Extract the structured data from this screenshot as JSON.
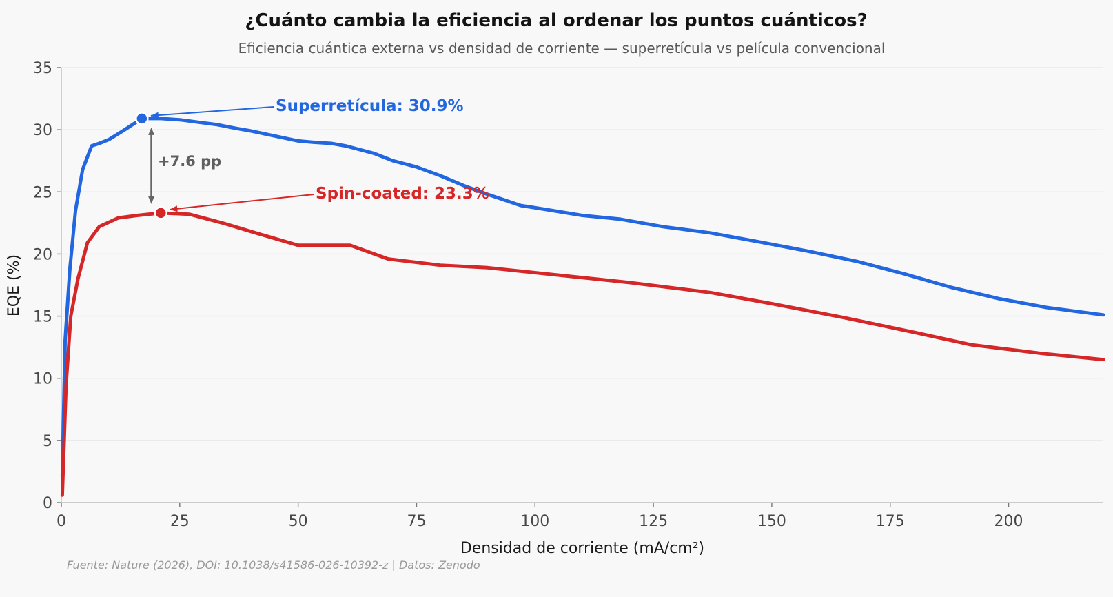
{
  "title": "¿Cuánto cambia la eficiencia al ordenar los puntos cuánticos?",
  "subtitle": "Eficiencia cuántica externa vs densidad de corriente — superretícula vs película convencional",
  "footer": "Fuente: Nature (2026), DOI: 10.1038/s41586-026-10392-z | Datos: Zenodo",
  "colors": {
    "background": "#f8f8f9",
    "grid": "#e9e9ec",
    "spine": "#bdbdbd",
    "tick_mark": "#777777",
    "tick_label": "#474747",
    "blue": "#2267e0",
    "red": "#d62728",
    "arrow_gray": "#666666"
  },
  "chart_data": {
    "type": "line",
    "title": "¿Cuánto cambia la eficiencia al ordenar los puntos cuánticos?",
    "subtitle": "Eficiencia cuántica externa vs densidad de corriente — superretícula vs película convencional",
    "xlabel": "Densidad de corriente (mA/cm²)",
    "ylabel": "EQE (%)",
    "xlim": [
      0,
      220
    ],
    "ylim": [
      0,
      35
    ],
    "x_ticks": [
      0,
      25,
      50,
      75,
      100,
      125,
      150,
      175,
      200
    ],
    "y_ticks": [
      0,
      5,
      10,
      15,
      20,
      25,
      30,
      35
    ],
    "grid": "horizontal",
    "legend_position": "none",
    "series": [
      {
        "name": "Superretícula",
        "color": "#2267e0",
        "peak": {
          "x": 17,
          "y": 30.9
        },
        "annotation": {
          "text": "Superretícula: 30.9%"
        },
        "points": [
          [
            0.2,
            2.1
          ],
          [
            0.8,
            13.0
          ],
          [
            1.8,
            18.8
          ],
          [
            3.0,
            23.5
          ],
          [
            4.5,
            26.8
          ],
          [
            6.4,
            28.7
          ],
          [
            8,
            28.9
          ],
          [
            10,
            29.2
          ],
          [
            13,
            29.9
          ],
          [
            17,
            30.9
          ],
          [
            21,
            30.9
          ],
          [
            25,
            30.8
          ],
          [
            29,
            30.6
          ],
          [
            33,
            30.4
          ],
          [
            37,
            30.1
          ],
          [
            40,
            29.9
          ],
          [
            45,
            29.5
          ],
          [
            50,
            29.1
          ],
          [
            53,
            29.0
          ],
          [
            57,
            28.9
          ],
          [
            60,
            28.7
          ],
          [
            63,
            28.4
          ],
          [
            66,
            28.1
          ],
          [
            70,
            27.5
          ],
          [
            75,
            27.0
          ],
          [
            80,
            26.3
          ],
          [
            85,
            25.5
          ],
          [
            90,
            24.8
          ],
          [
            97,
            23.9
          ],
          [
            102,
            23.6
          ],
          [
            110,
            23.1
          ],
          [
            118,
            22.8
          ],
          [
            127,
            22.2
          ],
          [
            137,
            21.7
          ],
          [
            147,
            21.0
          ],
          [
            158,
            20.2
          ],
          [
            168,
            19.4
          ],
          [
            178,
            18.4
          ],
          [
            188,
            17.3
          ],
          [
            198,
            16.4
          ],
          [
            208,
            15.7
          ],
          [
            220,
            15.1
          ]
        ]
      },
      {
        "name": "Spin-coated",
        "color": "#d62728",
        "peak": {
          "x": 21,
          "y": 23.3
        },
        "annotation": {
          "text": "Spin-coated: 23.3%"
        },
        "points": [
          [
            0.2,
            0.6
          ],
          [
            1,
            9.5
          ],
          [
            2,
            15.0
          ],
          [
            3.5,
            18.0
          ],
          [
            5.5,
            20.9
          ],
          [
            8,
            22.2
          ],
          [
            12,
            22.9
          ],
          [
            16,
            23.1
          ],
          [
            21,
            23.3
          ],
          [
            27,
            23.2
          ],
          [
            34,
            22.5
          ],
          [
            41,
            21.7
          ],
          [
            50,
            20.7
          ],
          [
            61,
            20.7
          ],
          [
            69,
            19.6
          ],
          [
            80,
            19.1
          ],
          [
            90,
            18.9
          ],
          [
            105,
            18.3
          ],
          [
            120,
            17.7
          ],
          [
            137,
            16.9
          ],
          [
            150,
            16.0
          ],
          [
            165,
            14.9
          ],
          [
            180,
            13.7
          ],
          [
            192,
            12.7
          ],
          [
            207,
            12.0
          ],
          [
            220,
            11.5
          ]
        ]
      }
    ],
    "annotations": {
      "gap": {
        "text": "+7.6 pp",
        "at_x": 19,
        "between": [
          30.9,
          23.3
        ]
      }
    }
  }
}
